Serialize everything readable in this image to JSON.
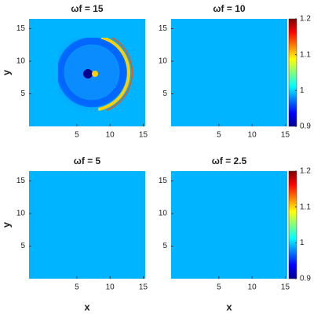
{
  "chart_data": [
    {
      "type": "heatmap",
      "title": "ωf = 15",
      "xlim": [
        -2.2,
        15.3
      ],
      "ylim": [
        0,
        16.5
      ],
      "xticks": [
        5,
        10,
        15
      ],
      "yticks": [
        5,
        10,
        15
      ],
      "ylabel": "y"
    },
    {
      "type": "heatmap",
      "title": "ωf = 10",
      "xlim": [
        -2.2,
        15.3
      ],
      "ylim": [
        0,
        16.5
      ],
      "xticks": [
        5,
        10,
        15
      ],
      "yticks": [
        5,
        10,
        15
      ],
      "colorbar": {
        "colormap": "jet",
        "lim": [
          0.9,
          1.2
        ],
        "ticks": [
          0.9,
          1,
          1.1,
          1.2
        ]
      }
    },
    {
      "type": "heatmap",
      "title": "ωf = 5",
      "xlim": [
        -2.2,
        15.3
      ],
      "ylim": [
        0,
        16.5
      ],
      "xticks": [
        5,
        10,
        15
      ],
      "yticks": [
        5,
        10,
        15
      ],
      "xlabel": "x",
      "ylabel": "y"
    },
    {
      "type": "heatmap",
      "title": "ωf = 2.5",
      "xlim": [
        -2.2,
        15.3
      ],
      "ylim": [
        0,
        16.5
      ],
      "xticks": [
        5,
        10,
        15
      ],
      "yticks": [
        5,
        10,
        15
      ],
      "xlabel": "x",
      "colorbar": {
        "colormap": "jet",
        "lim": [
          0.9,
          1.2
        ],
        "ticks": [
          0.9,
          1,
          1.1,
          1.2
        ]
      }
    }
  ]
}
